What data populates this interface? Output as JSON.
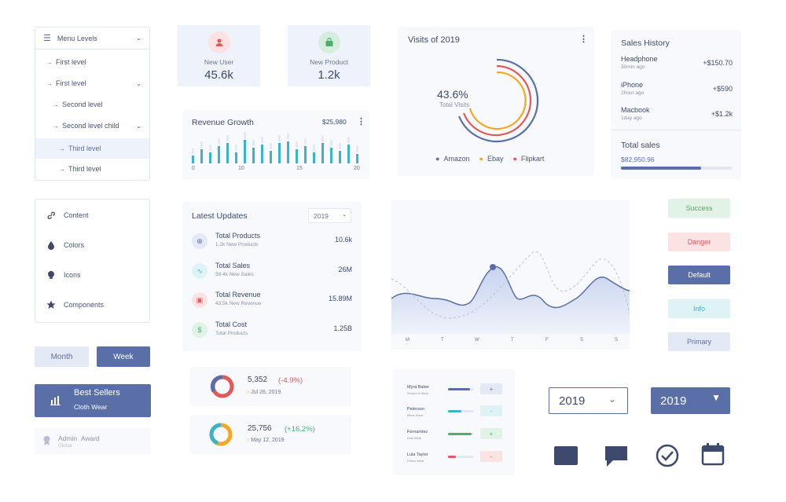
{
  "menu": {
    "title": "Menu Levels",
    "items": [
      {
        "label": "First level"
      },
      {
        "label": "First level"
      },
      {
        "label": "Second level"
      },
      {
        "label": "Second level child"
      },
      {
        "label": "Third level"
      },
      {
        "label": "Third level"
      }
    ]
  },
  "content_list": {
    "items": [
      {
        "label": "Content",
        "icon": "link-icon"
      },
      {
        "label": "Colors",
        "icon": "drop-icon"
      },
      {
        "label": "Icons",
        "icon": "bulb-icon"
      },
      {
        "label": "Components",
        "icon": "star-icon"
      }
    ]
  },
  "toggle": {
    "month": "Month",
    "week": "Week"
  },
  "best_sellers": {
    "title": "Best Sellers",
    "subtitle": "Cloth Wear"
  },
  "award": {
    "title": "Admin",
    "title2": "Award",
    "sub": "Global"
  },
  "stats": [
    {
      "label": "New User",
      "value": "45.6k",
      "color": "#f08a8a"
    },
    {
      "label": "New Product",
      "value": "1.2k",
      "color": "#4caf6d"
    }
  ],
  "revenue": {
    "title": "Revenue Growth",
    "amount": "$25,980",
    "ticks": [
      "0",
      "10",
      "15",
      "20"
    ]
  },
  "updates": {
    "title": "Latest Updates",
    "year": "2019",
    "rows": [
      {
        "title": "Total Products",
        "sub": "1.2k New Products",
        "value": "10.6k",
        "color": "#5a6ea8",
        "bg": "#e4e9f6"
      },
      {
        "title": "Total Sales",
        "sub": "39.4k New Sales",
        "value": "26M",
        "color": "#3bb3c9",
        "bg": "#dff3f7"
      },
      {
        "title": "Total Revenue",
        "sub": "43.5k New Revenue",
        "value": "15.89M",
        "color": "#e05a5a",
        "bg": "#fbe3e3"
      },
      {
        "title": "Total Cost",
        "sub": "Total Products",
        "value": "1.25B",
        "color": "#4caf6d",
        "bg": "#e1f3e6"
      }
    ]
  },
  "donut_cards": [
    {
      "value": "5,352",
      "change": "(-4.9%)",
      "date": "Jul 26, 2019",
      "change_color": "#e05a5a"
    },
    {
      "value": "25,756",
      "change": "(+16.2%)",
      "date": "May 12, 2019",
      "change_color": "#4caf6d"
    }
  ],
  "visits": {
    "title": "Visits of 2019",
    "percent": "43.6%",
    "sub": "Total Visits",
    "legend": [
      {
        "label": "Amazon",
        "color": "#5a6ea8"
      },
      {
        "label": "Ebay",
        "color": "#f5a623"
      },
      {
        "label": "Flipkart",
        "color": "#e05a5a"
      }
    ]
  },
  "sales": {
    "title": "Sales History",
    "rows": [
      {
        "name": "Headphone",
        "time": "30min ago",
        "amount": "+$150.70"
      },
      {
        "name": "iPhone",
        "time": "2hour ago",
        "amount": "+$590"
      },
      {
        "name": "Macbook",
        "time": "1day ago",
        "amount": "+$1.2k"
      }
    ],
    "total_label": "Total sales",
    "total_value": "$82,950.96",
    "total_progress": 0.72
  },
  "buttons": [
    {
      "label": "Success",
      "bg": "#e1f3e6",
      "fg": "#4caf6d"
    },
    {
      "label": "Danger",
      "bg": "#fbe3e3",
      "fg": "#e05a5a"
    },
    {
      "label": "Default",
      "bg": "#5a6ea8",
      "fg": "#ffffff"
    },
    {
      "label": "Info",
      "bg": "#dff3f7",
      "fg": "#3bb3c9"
    },
    {
      "label": "Primary",
      "bg": "#e4e9f6",
      "fg": "#5a6ea8"
    }
  ],
  "area_chart": {
    "days": [
      "M",
      "T",
      "W",
      "T",
      "F",
      "S",
      "S"
    ]
  },
  "people": [
    {
      "name": "Myra Baker",
      "role": "Women's Wear",
      "progress": 0.85,
      "color": "#5a6ea8",
      "btn": "+",
      "btn_bg": "#e4e9f6",
      "btn_fg": "#5a6ea8"
    },
    {
      "name": "Peterson",
      "role": "Mens Wear",
      "progress": 0.5,
      "color": "#3bb3c9",
      "btn": "-",
      "btn_bg": "#dff3f7",
      "btn_fg": "#3bb3c9"
    },
    {
      "name": "Fernandez",
      "role": "Kids Wear",
      "progress": 0.9,
      "color": "#4caf6d",
      "btn": "+",
      "btn_bg": "#e1f3e6",
      "btn_fg": "#4caf6d"
    },
    {
      "name": "Lula Taylor",
      "role": "Ethnic Wear",
      "progress": 0.3,
      "color": "#e05a5a",
      "btn": "-",
      "btn_bg": "#fbe3e3",
      "btn_fg": "#e05a5a"
    }
  ],
  "selects": [
    {
      "value": "2019",
      "style": "outline"
    },
    {
      "value": "2019",
      "style": "filled"
    }
  ],
  "icons": [
    "card-icon",
    "chat-icon",
    "check-circle-icon",
    "calendar-icon"
  ]
}
